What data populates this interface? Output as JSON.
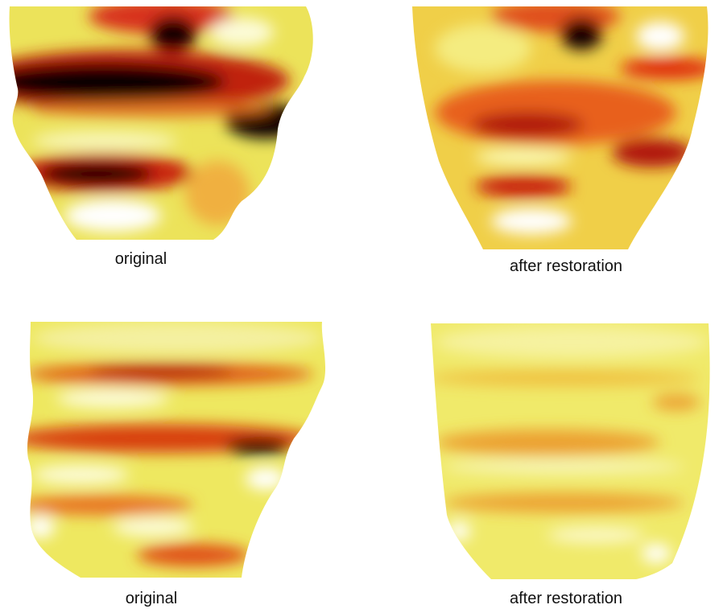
{
  "panels": [
    {
      "caption": "original"
    },
    {
      "caption": "after restoration"
    },
    {
      "caption": "original"
    },
    {
      "caption": "after restoration"
    }
  ]
}
